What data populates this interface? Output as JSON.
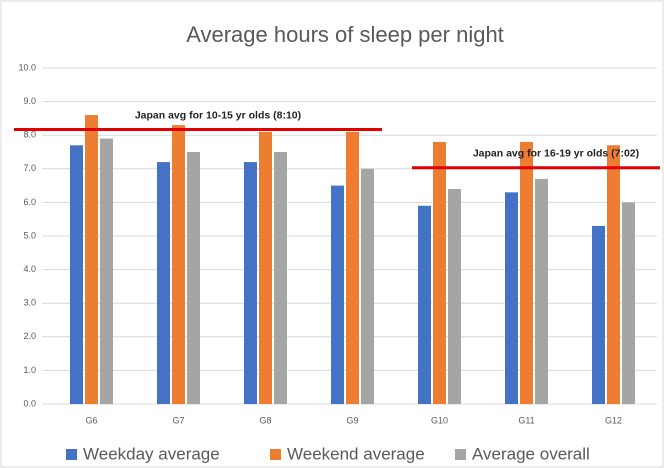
{
  "chart_data": {
    "type": "bar",
    "title": "Average hours of sleep per night",
    "categories": [
      "G6",
      "G7",
      "G8",
      "G9",
      "G10",
      "G11",
      "G12"
    ],
    "series": [
      {
        "name": "Weekday average",
        "color": "#4472c4",
        "values": [
          7.7,
          7.2,
          7.2,
          6.5,
          5.9,
          6.3,
          5.3
        ]
      },
      {
        "name": "Weekend average",
        "color": "#ed7d31",
        "values": [
          8.6,
          8.3,
          8.1,
          8.1,
          7.8,
          7.8,
          7.7
        ]
      },
      {
        "name": "Average overall",
        "color": "#a5a5a5",
        "values": [
          7.9,
          7.5,
          7.5,
          7.0,
          6.4,
          6.7,
          6.0
        ]
      }
    ],
    "ylim": [
      0,
      10
    ],
    "yticks": [
      {
        "value": 0,
        "label": "0.0"
      },
      {
        "value": 1,
        "label": "1.0"
      },
      {
        "value": 2,
        "label": "2.0"
      },
      {
        "value": 3,
        "label": "3.0"
      },
      {
        "value": 4,
        "label": "4.0"
      },
      {
        "value": 5,
        "label": "5.0"
      },
      {
        "value": 6,
        "label": "6.0"
      },
      {
        "value": 7,
        "label": "7.0"
      },
      {
        "value": 8,
        "label": "8.0"
      },
      {
        "value": 9,
        "label": "9.0"
      },
      {
        "value": 10,
        "label": "10.0"
      }
    ],
    "grid": true,
    "legend": "bottom",
    "reference_lines": [
      {
        "label": "Japan avg for 10-15 yr olds (8:10)",
        "value": 8.17,
        "color": "#e00000",
        "categories": [
          "G6",
          "G9"
        ]
      },
      {
        "label": "Japan avg for 16-19 yr olds (7:02)",
        "value": 7.03,
        "color": "#e00000",
        "categories": [
          "G10",
          "G12"
        ]
      }
    ]
  }
}
